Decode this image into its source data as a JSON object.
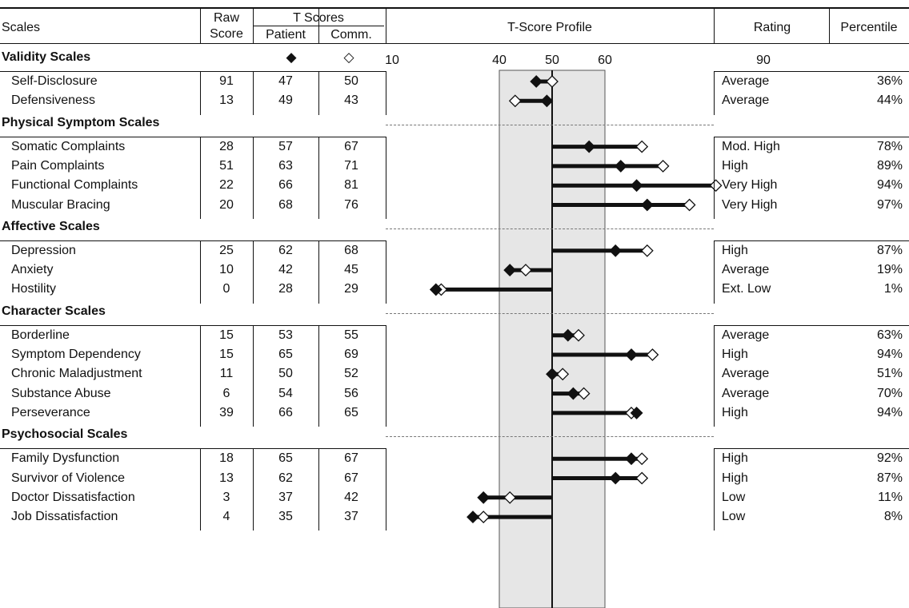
{
  "header": {
    "scales": "Scales",
    "raw_line1": "Raw",
    "raw_line2": "Score",
    "tscores": "T Scores",
    "patient": "Patient",
    "comm": "Comm.",
    "profile": "T-Score Profile",
    "rating": "Rating",
    "percentile": "Percentile"
  },
  "legend": {
    "patient_symbol": "◆",
    "comm_symbol": "◇"
  },
  "axis": {
    "ticks": [
      "10",
      "40",
      "50",
      "60",
      "90"
    ],
    "tick_values": [
      10,
      40,
      50,
      60,
      90
    ],
    "band": [
      40,
      60
    ],
    "baseline": 50
  },
  "colors": {
    "patient": "#111111",
    "comm": "#ffffff",
    "band": "#e6e6e6",
    "line": "#111111"
  },
  "sections": [
    {
      "title": "Validity Scales",
      "rows": [
        {
          "scale": "Self-Disclosure",
          "raw": "91",
          "patient": 47,
          "comm": 50,
          "rating": "Average",
          "percentile": "36%"
        },
        {
          "scale": "Defensiveness",
          "raw": "13",
          "patient": 49,
          "comm": 43,
          "rating": "Average",
          "percentile": "44%"
        }
      ]
    },
    {
      "title": "Physical Symptom Scales",
      "rows": [
        {
          "scale": "Somatic Complaints",
          "raw": "28",
          "patient": 57,
          "comm": 67,
          "rating": "Mod. High",
          "percentile": "78%"
        },
        {
          "scale": "Pain Complaints",
          "raw": "51",
          "patient": 63,
          "comm": 71,
          "rating": "High",
          "percentile": "89%"
        },
        {
          "scale": "Functional Complaints",
          "raw": "22",
          "patient": 66,
          "comm": 81,
          "rating": "Very High",
          "percentile": "94%"
        },
        {
          "scale": "Muscular Bracing",
          "raw": "20",
          "patient": 68,
          "comm": 76,
          "rating": "Very High",
          "percentile": "97%"
        }
      ]
    },
    {
      "title": "Affective Scales",
      "rows": [
        {
          "scale": "Depression",
          "raw": "25",
          "patient": 62,
          "comm": 68,
          "rating": "High",
          "percentile": "87%"
        },
        {
          "scale": "Anxiety",
          "raw": "10",
          "patient": 42,
          "comm": 45,
          "rating": "Average",
          "percentile": "19%"
        },
        {
          "scale": "Hostility",
          "raw": "0",
          "patient": 28,
          "comm": 29,
          "rating": "Ext. Low",
          "percentile": "1%"
        }
      ]
    },
    {
      "title": "Character Scales",
      "rows": [
        {
          "scale": "Borderline",
          "raw": "15",
          "patient": 53,
          "comm": 55,
          "rating": "Average",
          "percentile": "63%"
        },
        {
          "scale": "Symptom Dependency",
          "raw": "15",
          "patient": 65,
          "comm": 69,
          "rating": "High",
          "percentile": "94%"
        },
        {
          "scale": "Chronic Maladjustment",
          "raw": "11",
          "patient": 50,
          "comm": 52,
          "rating": "Average",
          "percentile": "51%"
        },
        {
          "scale": "Substance Abuse",
          "raw": "6",
          "patient": 54,
          "comm": 56,
          "rating": "Average",
          "percentile": "70%"
        },
        {
          "scale": "Perseverance",
          "raw": "39",
          "patient": 66,
          "comm": 65,
          "rating": "High",
          "percentile": "94%"
        }
      ]
    },
    {
      "title": "Psychosocial Scales",
      "rows": [
        {
          "scale": "Family Dysfunction",
          "raw": "18",
          "patient": 65,
          "comm": 67,
          "rating": "High",
          "percentile": "92%"
        },
        {
          "scale": "Survivor of Violence",
          "raw": "13",
          "patient": 62,
          "comm": 67,
          "rating": "High",
          "percentile": "87%"
        },
        {
          "scale": "Doctor Dissatisfaction",
          "raw": "3",
          "patient": 37,
          "comm": 42,
          "rating": "Low",
          "percentile": "11%"
        },
        {
          "scale": "Job Dissatisfaction",
          "raw": "4",
          "patient": 35,
          "comm": 37,
          "rating": "Low",
          "percentile": "8%"
        }
      ]
    }
  ]
}
